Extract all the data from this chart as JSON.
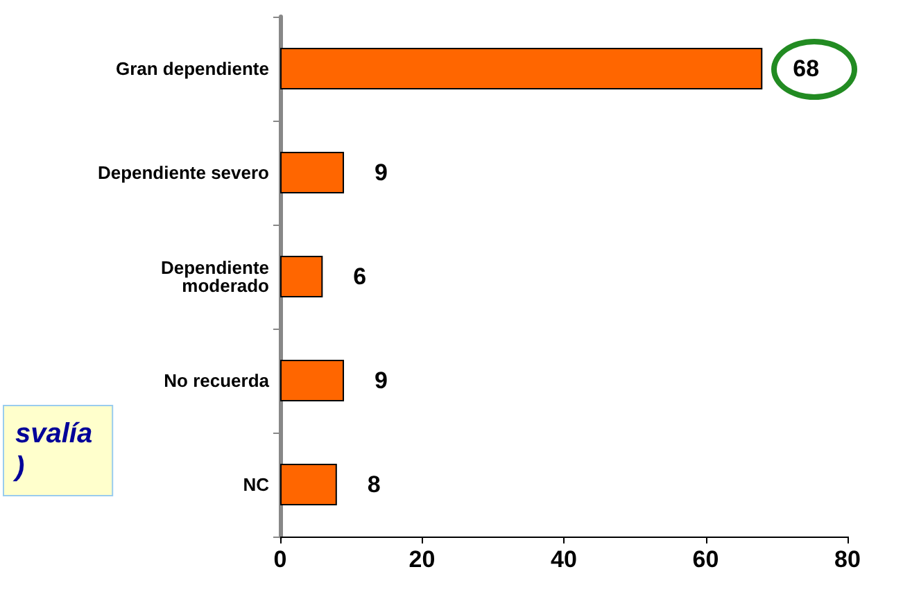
{
  "chart_data": {
    "type": "bar",
    "orientation": "horizontal",
    "categories": [
      "Gran dependiente",
      "Dependiente severo",
      "Dependiente\nmoderado",
      "No recuerda",
      "NC"
    ],
    "values": [
      68,
      9,
      6,
      9,
      8
    ],
    "color": "#ff6600",
    "data_labels": true,
    "xlim": [
      0,
      80
    ],
    "xticks": [
      0,
      20,
      40,
      60,
      80
    ],
    "grid": false,
    "annotations": [
      "svalía\n)"
    ]
  }
}
